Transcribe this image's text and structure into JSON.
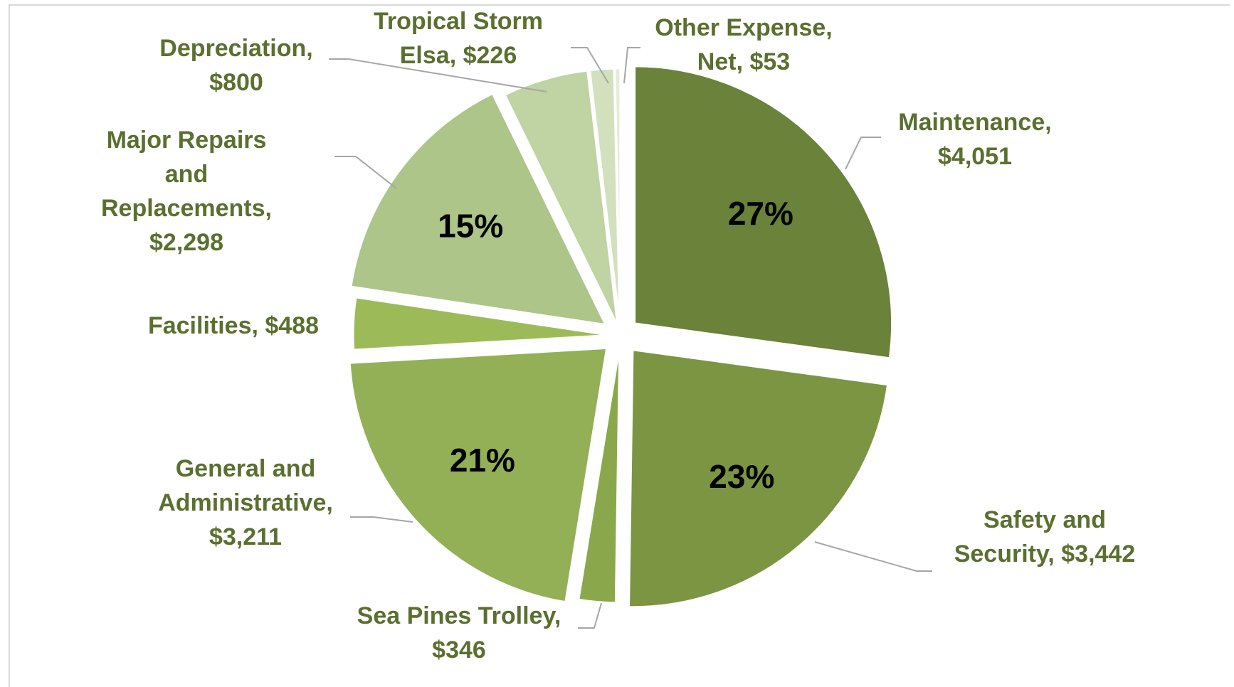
{
  "colors": {
    "label_text": "#5b6f2f",
    "leader_line": "#a6a6a6",
    "separator": "#ffffff",
    "frame_border": "#d9d9d9"
  },
  "chart_data": {
    "type": "pie",
    "title": "",
    "slices": [
      {
        "name": "Maintenance",
        "value": 4051,
        "percent_label": "27%",
        "color": "#6a823a",
        "label_lines": [
          "Maintenance,",
          "$4,051"
        ]
      },
      {
        "name": "Safety and Security",
        "value": 3442,
        "percent_label": "23%",
        "color": "#7b9542",
        "label_lines": [
          "Safety and",
          "Security,  $3,442"
        ]
      },
      {
        "name": "Sea Pines Trolley",
        "value": 346,
        "percent_label": "",
        "color": "#8aa84b",
        "label_lines": [
          "Sea Pines Trolley,",
          "$346"
        ]
      },
      {
        "name": "General and Administrative",
        "value": 3211,
        "percent_label": "21%",
        "color": "#93b057",
        "label_lines": [
          "General and",
          "Administrative,",
          "$3,211"
        ]
      },
      {
        "name": "Facilities",
        "value": 488,
        "percent_label": "",
        "color": "#9cbb58",
        "label_lines": [
          "Facilities,  $488"
        ]
      },
      {
        "name": "Major Repairs and Replacements",
        "value": 2298,
        "percent_label": "15%",
        "color": "#adc588",
        "label_lines": [
          "Major Repairs",
          "and",
          "Replacements,",
          "$2,298"
        ]
      },
      {
        "name": "Depreciation",
        "value": 800,
        "percent_label": "",
        "color": "#bfd3a3",
        "label_lines": [
          "Depreciation,",
          "$800"
        ]
      },
      {
        "name": "Tropical Storm Elsa",
        "value": 226,
        "percent_label": "",
        "color": "#d2e0bd",
        "label_lines": [
          "Tropical Storm",
          "Elsa,  $226"
        ]
      },
      {
        "name": "Other Expense, Net",
        "value": 53,
        "percent_label": "",
        "color": "#e3ecd6",
        "label_lines": [
          "Other Expense,",
          "Net,  $53"
        ]
      }
    ]
  }
}
